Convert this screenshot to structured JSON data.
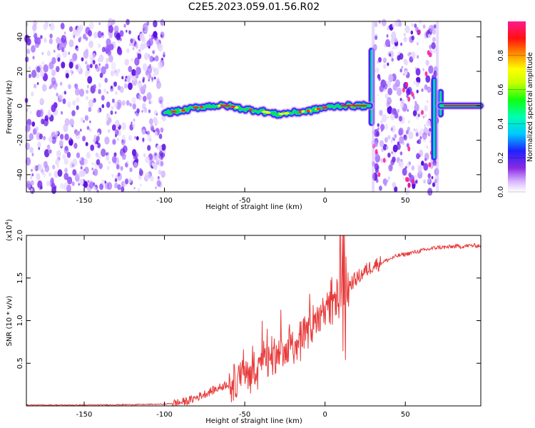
{
  "title": "C2E5.2023.059.01.56.R02",
  "colors": {
    "snr_line": "#e83a3a",
    "spectrogram_low": "#c8a8f0",
    "spectrogram_mid": "#7a2cf0",
    "axis": "#000000"
  },
  "chart_data": [
    {
      "type": "heatmap",
      "title": "C2E5.2023.059.01.56.R02",
      "xlabel": "Height of straight line (km)",
      "ylabel": "Frequency (Hz)",
      "xlim": [
        -186,
        97
      ],
      "ylim": [
        -50,
        49
      ],
      "x_ticks": [
        -150,
        -100,
        -50,
        0,
        50
      ],
      "y_ticks": [
        -40,
        -20,
        0,
        20,
        40
      ],
      "colorbar": {
        "label": "Normalized spectral amplitude",
        "range": [
          0,
          1
        ],
        "ticks": [
          "0.0",
          "0.2",
          "0.4",
          "0.6",
          "0.8"
        ],
        "colormap": "rainbow"
      },
      "noise_regions_km": [
        [
          -186,
          -100
        ],
        [
          30,
          70
        ]
      ],
      "signal_trace": {
        "x": [
          -100,
          -90,
          -80,
          -70,
          -60,
          -50,
          -40,
          -30,
          -20,
          -10,
          0,
          10,
          20,
          26,
          70,
          75,
          97
        ],
        "y": [
          -4,
          -3,
          -1,
          0,
          0,
          -2,
          -3,
          -5,
          -4,
          -3,
          -1,
          0,
          0,
          0,
          0,
          0,
          0
        ]
      },
      "vertical_features_km": [
        {
          "x": 29,
          "y_range": [
            -10,
            32
          ]
        },
        {
          "x": 68,
          "y_range": [
            -30,
            15
          ]
        },
        {
          "x": 72,
          "y_range": [
            -5,
            8
          ]
        }
      ]
    },
    {
      "type": "line",
      "xlabel": "Height of straight line (km)",
      "ylabel": "SNR (10 * v/v)",
      "y_multiplier": "(x10",
      "y_multiplier_exp": "4",
      "y_multiplier_close": ")",
      "xlim": [
        -186,
        97
      ],
      "ylim": [
        0,
        2.0
      ],
      "x_ticks": [
        -150,
        -100,
        -50,
        0,
        50
      ],
      "y_ticks": [
        "0.5",
        "1.0",
        "1.5",
        "2.0"
      ],
      "series": [
        {
          "x": [
            -186,
            -150,
            -120,
            -100,
            -90,
            -85,
            -80,
            -75,
            -70,
            -65,
            -60,
            -55,
            -50,
            -45,
            -40,
            -35,
            -30,
            -25,
            -20,
            -15,
            -10,
            -5,
            0,
            5,
            10,
            15,
            20,
            25,
            30,
            35,
            40,
            45,
            50,
            55,
            60,
            65,
            70,
            75,
            80,
            85,
            90,
            97
          ],
          "y": [
            0.01,
            0.01,
            0.015,
            0.02,
            0.04,
            0.06,
            0.1,
            0.14,
            0.18,
            0.22,
            0.27,
            0.3,
            0.33,
            0.38,
            0.45,
            0.52,
            0.55,
            0.6,
            0.68,
            0.78,
            0.88,
            0.98,
            1.05,
            1.2,
            1.4,
            1.42,
            1.5,
            1.58,
            1.65,
            1.68,
            1.72,
            1.76,
            1.78,
            1.8,
            1.82,
            1.84,
            1.86,
            1.86,
            1.87,
            1.87,
            1.88,
            1.88
          ]
        }
      ]
    }
  ]
}
